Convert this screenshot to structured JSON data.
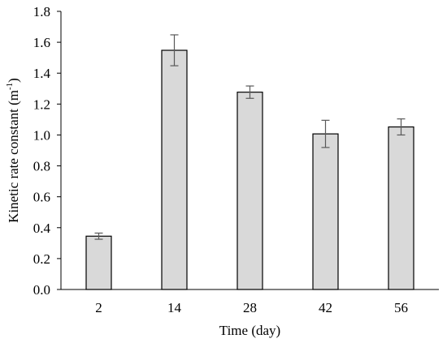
{
  "chart_data": {
    "type": "bar",
    "categories": [
      "2",
      "14",
      "28",
      "42",
      "56"
    ],
    "values": [
      0.345,
      1.548,
      1.277,
      1.007,
      1.052
    ],
    "errors": [
      0.02,
      0.1,
      0.04,
      0.088,
      0.052
    ],
    "xlabel": "Time (day)",
    "ylabel_main": "Kinetic rate constant (m",
    "ylabel_sup": "-1",
    "ylabel_close": ")",
    "ylim": [
      0,
      1.8
    ],
    "yticks": [
      "0.0",
      "0.2",
      "0.4",
      "0.6",
      "0.8",
      "1.0",
      "1.2",
      "1.4",
      "1.6",
      "1.8"
    ],
    "grid": false,
    "legend": "none",
    "colors": {
      "bar_fill": "#d9d9d9",
      "bar_stroke": "#000000",
      "error_bar": "#595959",
      "axis": "#000000"
    }
  }
}
